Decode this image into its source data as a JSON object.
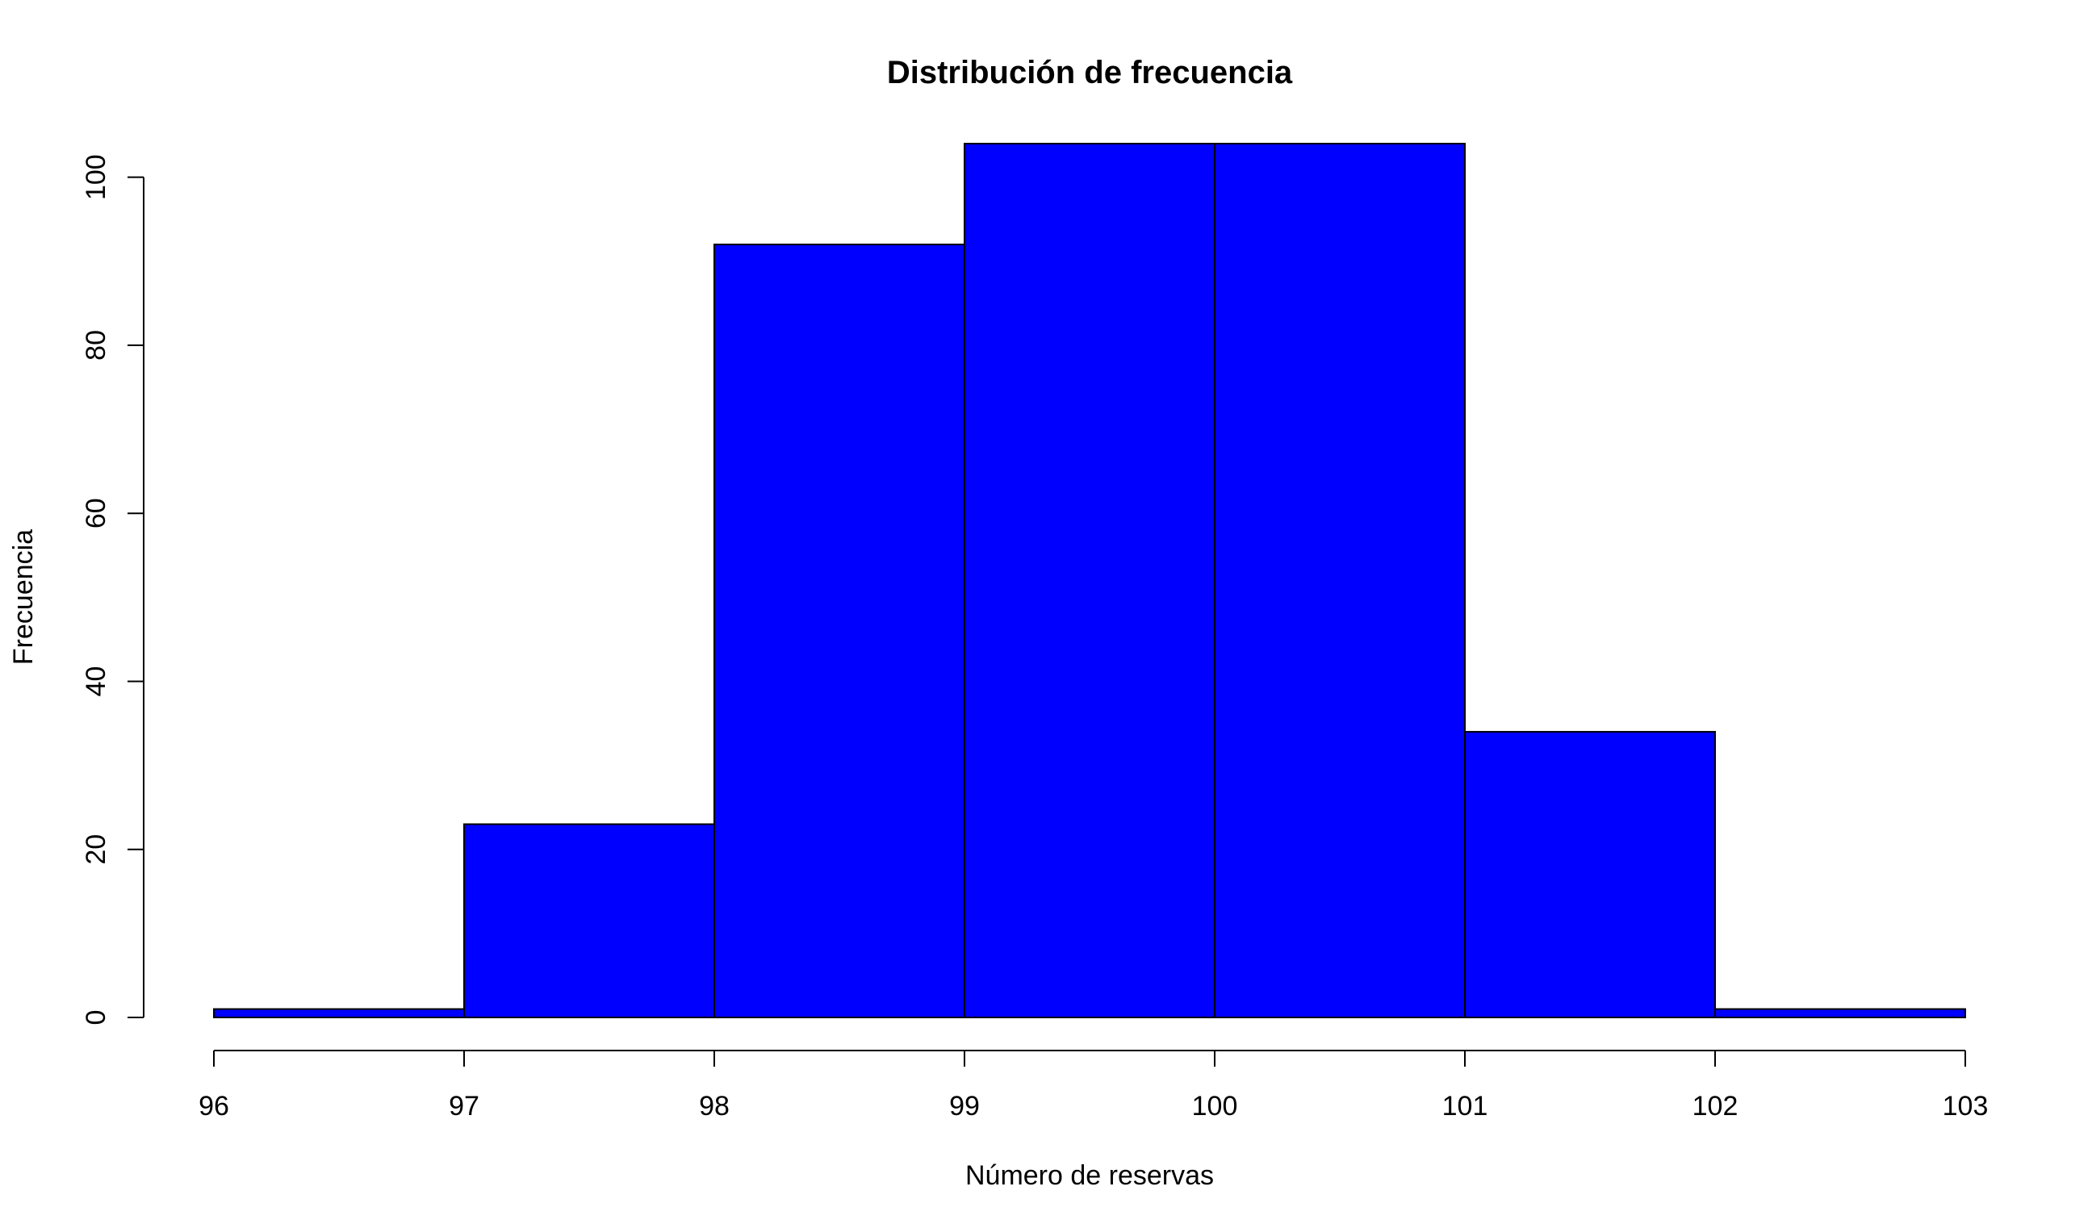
{
  "chart_data": {
    "type": "bar",
    "subtype": "histogram",
    "title": "Distribución de frecuencia",
    "xlabel": "Número de reservas",
    "ylabel": "Frecuencia",
    "bins": [
      {
        "from": 96,
        "to": 97,
        "value": 1
      },
      {
        "from": 97,
        "to": 98,
        "value": 23
      },
      {
        "from": 98,
        "to": 99,
        "value": 92
      },
      {
        "from": 99,
        "to": 100,
        "value": 104
      },
      {
        "from": 100,
        "to": 101,
        "value": 104
      },
      {
        "from": 101,
        "to": 102,
        "value": 34
      },
      {
        "from": 102,
        "to": 103,
        "value": 1
      }
    ],
    "xlim": [
      96,
      103
    ],
    "ylim": [
      0,
      104
    ],
    "x_ticks": [
      96,
      97,
      98,
      99,
      100,
      101,
      102,
      103
    ],
    "x_tick_labels": [
      "96",
      "97",
      "98",
      "99",
      "100",
      "101",
      "102",
      "103"
    ],
    "y_ticks": [
      0,
      20,
      40,
      60,
      80,
      100
    ],
    "y_tick_labels": [
      "0",
      "20",
      "40",
      "60",
      "80",
      "100"
    ],
    "grid": false,
    "legend": "none",
    "colors": {
      "bar_fill": "#0000ff",
      "bar_stroke": "#000000",
      "axis": "#000000",
      "background": "#ffffff"
    }
  }
}
